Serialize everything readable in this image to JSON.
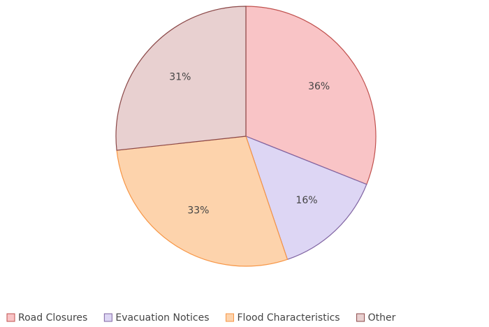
{
  "chart_data": {
    "type": "pie",
    "categories": [
      "Road Closures",
      "Evacuation Notices",
      "Flood Characteristics",
      "Other"
    ],
    "values": [
      36,
      16,
      33,
      31
    ],
    "value_labels": [
      "36%",
      "16%",
      "33%",
      "31%"
    ],
    "colors": [
      "#f9c4c6",
      "#ddd6f4",
      "#fdd3ac",
      "#e8d0d0"
    ],
    "edge_colors": [
      "#c0504d",
      "#8064a2",
      "#f79646",
      "#8b4848"
    ],
    "legend": "bottom"
  }
}
